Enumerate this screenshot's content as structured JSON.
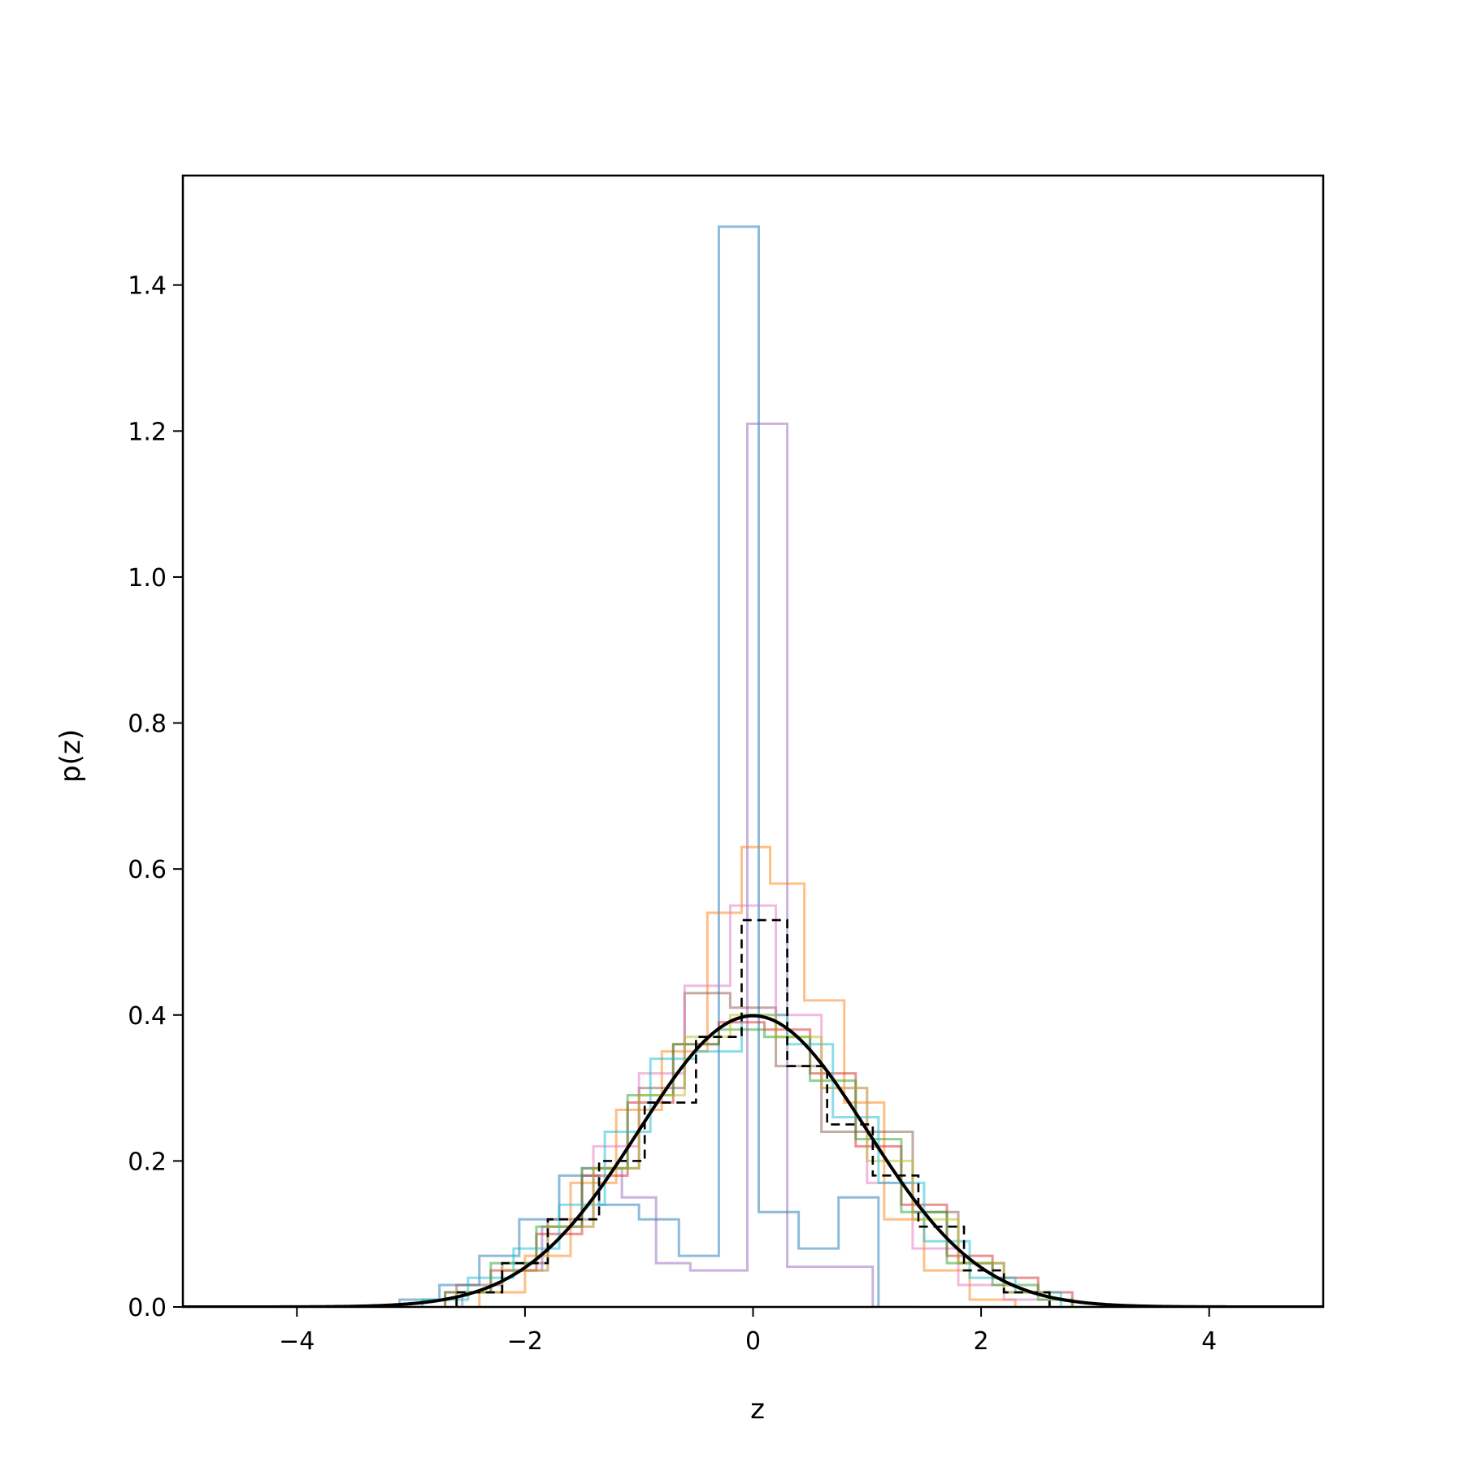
{
  "chart_data": {
    "type": "histogram",
    "title": "",
    "xlabel": "z",
    "ylabel": "p(z)",
    "xlim": [
      -5,
      5
    ],
    "ylim": [
      0,
      1.55
    ],
    "x_ticks": [
      -4,
      -2,
      0,
      2,
      4
    ],
    "x_tick_labels": [
      "−4",
      "−2",
      "0",
      "2",
      "4"
    ],
    "y_ticks": [
      0.0,
      0.2,
      0.4,
      0.6,
      0.8,
      1.0,
      1.2,
      1.4
    ],
    "y_tick_labels": [
      "0.0",
      "0.2",
      "0.4",
      "0.6",
      "0.8",
      "1.0",
      "1.2",
      "1.4"
    ],
    "grid": false,
    "legend": "none",
    "series": [
      {
        "color": "#1f77b4",
        "style": "step",
        "edges": [
          -3.1,
          -2.75,
          -2.4,
          -2.05,
          -1.7,
          -1.35,
          -1.0,
          -0.65,
          -0.3,
          0.05,
          0.4,
          0.75,
          1.1
        ],
        "values": [
          0.01,
          0.03,
          0.07,
          0.12,
          0.18,
          0.14,
          0.12,
          0.07,
          1.48,
          0.13,
          0.08,
          0.15,
          0.0
        ]
      },
      {
        "color": "#9467bd",
        "style": "step",
        "edges": [
          -2.55,
          -2.2,
          -1.85,
          -1.5,
          -1.15,
          -0.85,
          -0.55,
          -0.05,
          0.3,
          0.65,
          1.05,
          1.45
        ],
        "values": [
          0.02,
          0.05,
          0.11,
          0.19,
          0.15,
          0.06,
          0.05,
          1.21,
          0.055,
          0.055,
          0.0
        ]
      },
      {
        "color": "#ff7f0e",
        "style": "step",
        "edges": [
          -2.4,
          -2.0,
          -1.6,
          -1.2,
          -0.8,
          -0.4,
          -0.1,
          0.15,
          0.45,
          0.8,
          1.15,
          1.5,
          1.9,
          2.3
        ],
        "values": [
          0.02,
          0.07,
          0.17,
          0.27,
          0.35,
          0.54,
          0.63,
          0.58,
          0.42,
          0.28,
          0.12,
          0.05,
          0.01
        ]
      },
      {
        "color": "#8c564b",
        "style": "step",
        "edges": [
          -2.6,
          -2.2,
          -1.8,
          -1.4,
          -1.0,
          -0.6,
          -0.2,
          0.2,
          0.6,
          1.0,
          1.4,
          1.8,
          2.2,
          2.6
        ],
        "values": [
          0.03,
          0.06,
          0.12,
          0.19,
          0.3,
          0.43,
          0.41,
          0.33,
          0.24,
          0.24,
          0.13,
          0.06,
          0.02
        ]
      },
      {
        "color": "#e377c2",
        "style": "step",
        "edges": [
          -2.6,
          -2.2,
          -1.8,
          -1.4,
          -1.0,
          -0.6,
          -0.2,
          0.2,
          0.6,
          1.0,
          1.4,
          1.8,
          2.2,
          2.6
        ],
        "values": [
          0.02,
          0.05,
          0.11,
          0.22,
          0.32,
          0.44,
          0.55,
          0.4,
          0.3,
          0.17,
          0.08,
          0.03,
          0.01
        ]
      },
      {
        "color": "#d62728",
        "style": "step",
        "edges": [
          -2.7,
          -2.3,
          -1.9,
          -1.5,
          -1.1,
          -0.7,
          -0.3,
          0.1,
          0.5,
          0.9,
          1.3,
          1.7,
          2.1,
          2.5,
          2.8
        ],
        "values": [
          0.02,
          0.05,
          0.1,
          0.18,
          0.28,
          0.36,
          0.39,
          0.38,
          0.32,
          0.22,
          0.14,
          0.07,
          0.04,
          0.02
        ]
      },
      {
        "color": "#2ca02c",
        "style": "step",
        "edges": [
          -2.7,
          -2.3,
          -1.9,
          -1.5,
          -1.1,
          -0.7,
          -0.3,
          0.1,
          0.5,
          0.9,
          1.3,
          1.7,
          2.1,
          2.5,
          2.8
        ],
        "values": [
          0.02,
          0.06,
          0.11,
          0.19,
          0.29,
          0.36,
          0.38,
          0.37,
          0.31,
          0.23,
          0.13,
          0.06,
          0.03,
          0.01
        ]
      },
      {
        "color": "#17becf",
        "style": "step",
        "edges": [
          -2.9,
          -2.5,
          -2.1,
          -1.7,
          -1.3,
          -0.9,
          -0.5,
          -0.1,
          0.3,
          0.7,
          1.1,
          1.5,
          1.9,
          2.3,
          2.7
        ],
        "values": [
          0.01,
          0.04,
          0.08,
          0.14,
          0.24,
          0.34,
          0.35,
          0.4,
          0.36,
          0.26,
          0.17,
          0.09,
          0.04,
          0.02
        ]
      },
      {
        "color": "#bcbd22",
        "style": "step",
        "edges": [
          -2.6,
          -2.2,
          -1.8,
          -1.4,
          -1.0,
          -0.6,
          -0.2,
          0.2,
          0.6,
          1.0,
          1.4,
          1.8,
          2.2,
          2.6
        ],
        "values": [
          0.02,
          0.05,
          0.11,
          0.19,
          0.29,
          0.37,
          0.4,
          0.37,
          0.3,
          0.2,
          0.12,
          0.06,
          0.02
        ]
      },
      {
        "color": "#000000",
        "style": "dashed-step",
        "edges": [
          -2.6,
          -2.2,
          -1.8,
          -1.35,
          -0.95,
          -0.5,
          -0.1,
          0.3,
          0.65,
          1.05,
          1.45,
          1.85,
          2.2,
          2.6
        ],
        "values": [
          0.02,
          0.06,
          0.12,
          0.2,
          0.28,
          0.37,
          0.53,
          0.33,
          0.25,
          0.18,
          0.11,
          0.05,
          0.02
        ]
      },
      {
        "color": "#000000",
        "style": "line",
        "function": "standard-normal-pdf",
        "mean": 0,
        "std": 1
      }
    ]
  }
}
